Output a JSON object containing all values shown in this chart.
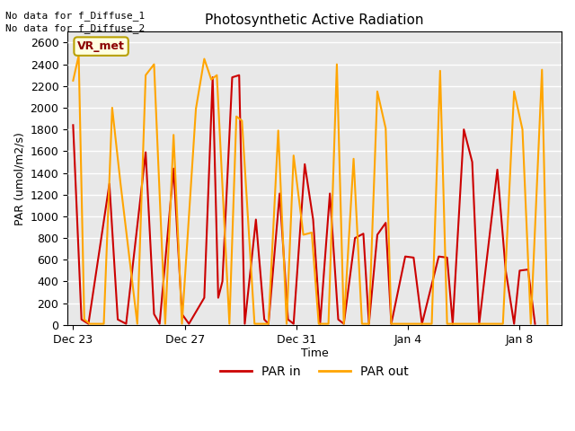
{
  "title": "Photosynthetic Active Radiation",
  "xlabel": "Time",
  "ylabel": "PAR (umol/m2/s)",
  "annotations": [
    "No data for f_Diffuse_1",
    "No data for f_Diffuse_2"
  ],
  "legend_label": "VR_met",
  "par_in_label": "PAR in",
  "par_out_label": "PAR out",
  "par_in_color": "#cc0000",
  "par_out_color": "#FFA500",
  "background_color": "#e8e8e8",
  "ylim": [
    0,
    2700
  ],
  "par_in_x": [
    0.0,
    0.3,
    0.55,
    1.3,
    1.6,
    1.9,
    2.6,
    2.9,
    3.1,
    3.6,
    3.9,
    4.15,
    4.7,
    5.0,
    5.2,
    5.35,
    5.7,
    5.95,
    6.15,
    6.55,
    6.85,
    7.0,
    7.4,
    7.7,
    7.9,
    8.3,
    8.6,
    8.85,
    9.2,
    9.5,
    9.7,
    10.1,
    10.4,
    10.6,
    10.9,
    11.2,
    11.4,
    11.9,
    12.2,
    12.5,
    13.1,
    13.4,
    13.6,
    14.0,
    14.3,
    14.55,
    15.2,
    15.5,
    15.8,
    16.0,
    16.3,
    16.55
  ],
  "par_in_y": [
    1840,
    50,
    10,
    1300,
    50,
    10,
    1590,
    100,
    10,
    1440,
    100,
    10,
    250,
    2280,
    250,
    400,
    2280,
    2300,
    10,
    970,
    50,
    10,
    1210,
    50,
    10,
    1480,
    970,
    10,
    1210,
    50,
    10,
    800,
    840,
    10,
    830,
    940,
    10,
    630,
    620,
    10,
    630,
    620,
    10,
    1800,
    1500,
    10,
    1430,
    500,
    10,
    500,
    510,
    10
  ],
  "par_out_x": [
    0.0,
    0.2,
    0.4,
    0.6,
    1.1,
    1.4,
    1.7,
    2.3,
    2.6,
    2.9,
    3.3,
    3.6,
    3.9,
    4.4,
    4.7,
    4.95,
    5.15,
    5.6,
    5.85,
    6.05,
    6.5,
    6.8,
    7.0,
    7.35,
    7.65,
    7.9,
    8.25,
    8.55,
    8.8,
    9.15,
    9.45,
    9.7,
    10.05,
    10.35,
    10.6,
    10.9,
    11.2,
    11.4,
    11.85,
    12.15,
    12.4,
    12.85,
    13.15,
    13.4,
    13.8,
    14.1,
    14.4,
    14.8,
    15.1,
    15.4,
    15.8,
    16.1,
    16.4,
    16.8,
    17.0
  ],
  "par_out_y": [
    2250,
    2480,
    50,
    10,
    10,
    2000,
    1300,
    10,
    2300,
    2400,
    10,
    1750,
    10,
    1990,
    2450,
    2260,
    2300,
    10,
    1920,
    1880,
    10,
    10,
    10,
    1790,
    10,
    1560,
    830,
    850,
    10,
    10,
    2400,
    10,
    1530,
    10,
    10,
    2150,
    1810,
    10,
    10,
    10,
    10,
    10,
    2340,
    10,
    10,
    10,
    10,
    10,
    10,
    10,
    2150,
    1800,
    10,
    2350,
    10
  ]
}
